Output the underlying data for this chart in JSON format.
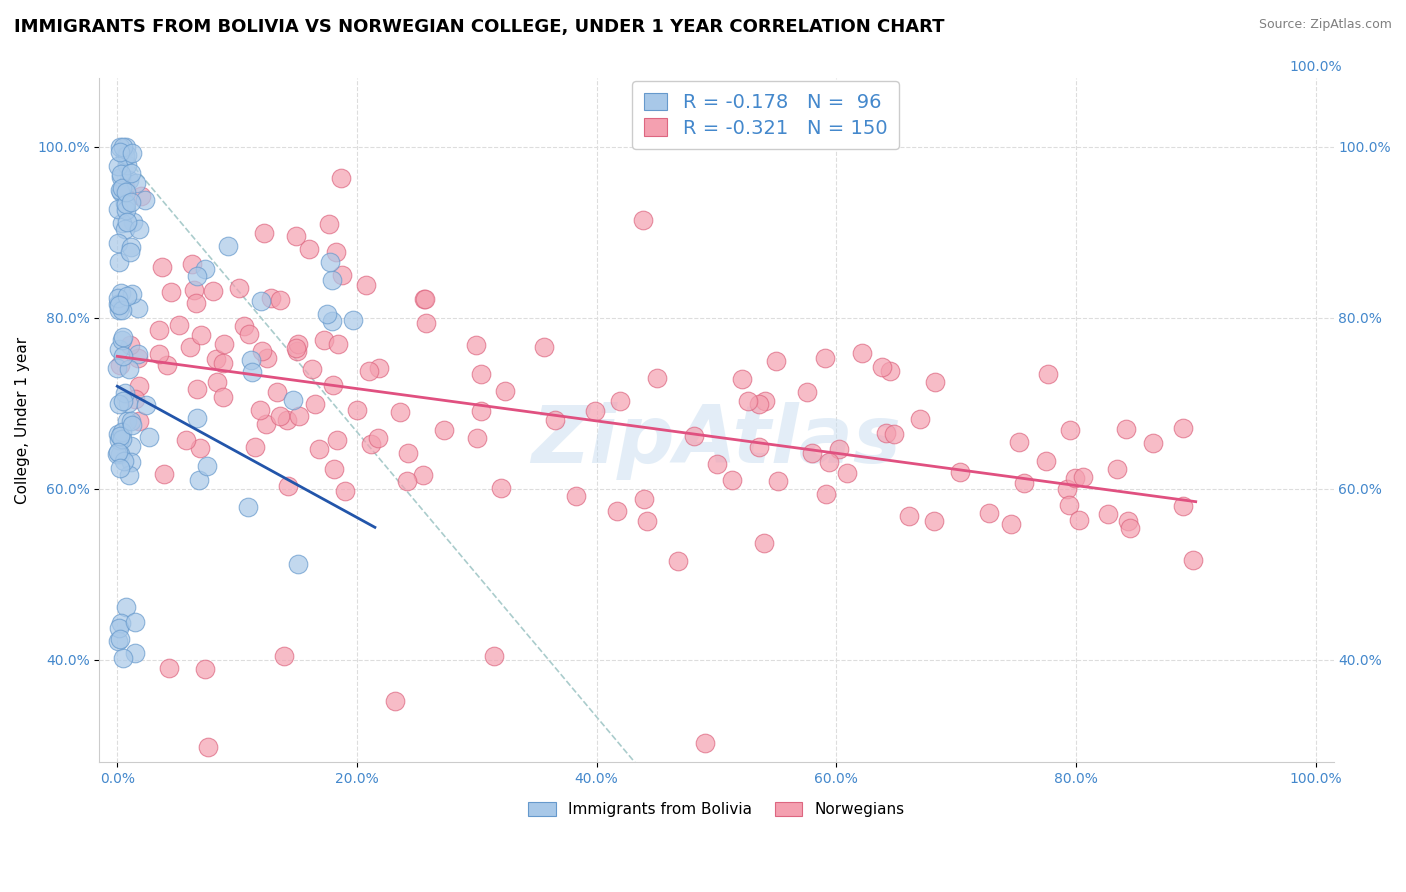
{
  "title": "IMMIGRANTS FROM BOLIVIA VS NORWEGIAN COLLEGE, UNDER 1 YEAR CORRELATION CHART",
  "source_text": "Source: ZipAtlas.com",
  "ylabel": "College, Under 1 year",
  "legend_r1": "R = -0.178",
  "legend_n1": "N =  96",
  "legend_r2": "R = -0.321",
  "legend_n2": "N = 150",
  "bolivia_color": "#a8c8e8",
  "bolivia_edge": "#6699cc",
  "norway_color": "#f4a0b0",
  "norway_edge": "#dd6680",
  "trend_bolivia_color": "#2255aa",
  "trend_norway_color": "#e05080",
  "trend_dashed_color": "#aacccc",
  "watermark_color": "#c8ddf0",
  "tick_color": "#4488cc",
  "title_fontsize": 13,
  "axis_label_fontsize": 11,
  "tick_fontsize": 10,
  "legend_fontsize": 14
}
